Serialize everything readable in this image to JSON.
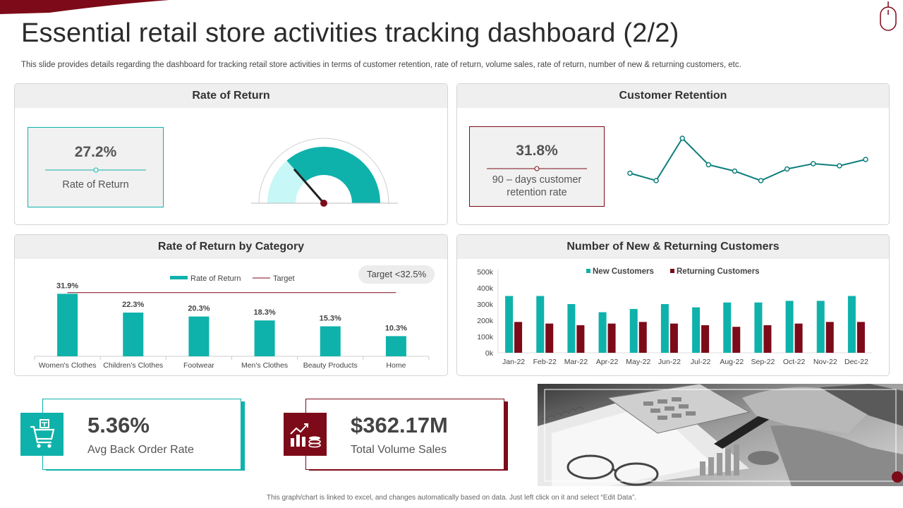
{
  "header": {
    "title": "Essential retail store activities tracking dashboard (2/2)",
    "subtitle": "This slide provides details regarding the dashboard for tracking retail store activities in terms of customer retention, rate of return, volume sales, rate of return, number of new & returning customers, etc."
  },
  "rate_of_return_panel": {
    "title": "Rate of Return",
    "value": "27.2%",
    "label": "Rate of Return",
    "gauge_fraction": 0.272
  },
  "customer_retention_panel": {
    "title": "Customer Retention",
    "value": "31.8%",
    "label_line1": "90 – days customer",
    "label_line2": "retention rate",
    "sparkline": [
      22,
      15,
      55,
      30,
      24,
      15,
      26,
      31,
      29,
      35
    ]
  },
  "category_panel": {
    "title": "Rate of Return by Category",
    "target_pill": "Target  <32.5%",
    "legend_series": "Rate of Return",
    "legend_target": "Target"
  },
  "customers_panel": {
    "title": "Number of New & Returning Customers"
  },
  "stats": {
    "back_order": {
      "value": "5.36%",
      "label": "Avg Back Order Rate"
    },
    "volume_sales": {
      "value": "$362.17M",
      "label": "Total Volume Sales"
    }
  },
  "footnote": "This graph/chart is linked to excel, and changes automatically based on data. Just left click on it and select “Edit Data”.",
  "colors": {
    "teal": "#0eb2ab",
    "maroon": "#7d0a18",
    "gauge_light": "#c8f7f7"
  },
  "icons": [
    "shopping-cart-icon",
    "sales-chart-coins-icon",
    "mouse-icon"
  ],
  "chart_data": [
    {
      "type": "bar",
      "title": "Rate of Return by Category",
      "categories": [
        "Women's Clothes",
        "Children's Clothes",
        "Footwear",
        "Men's Clothes",
        "Beauty Products",
        "Home"
      ],
      "series": [
        {
          "name": "Rate of Return",
          "values": [
            31.9,
            22.3,
            20.3,
            18.3,
            15.3,
            10.3
          ]
        }
      ],
      "data_labels": [
        "31.9%",
        "22.3%",
        "20.3%",
        "18.3%",
        "15.3%",
        "10.3%"
      ],
      "target": {
        "name": "Target",
        "value": 32.5
      },
      "ylim": [
        0,
        36
      ]
    },
    {
      "type": "bar",
      "title": "Number of New & Returning Customers",
      "categories": [
        "Jan-22",
        "Feb-22",
        "Mar-22",
        "Apr-22",
        "May-22",
        "Jun-22",
        "Jul-22",
        "Aug-22",
        "Sep-22",
        "Oct-22",
        "Nov-22",
        "Dec-22"
      ],
      "series": [
        {
          "name": "New Customers",
          "values": [
            350000,
            350000,
            300000,
            250000,
            270000,
            300000,
            280000,
            310000,
            310000,
            320000,
            320000,
            350000
          ]
        },
        {
          "name": "Returning Customers",
          "values": [
            190000,
            180000,
            170000,
            180000,
            190000,
            180000,
            170000,
            160000,
            170000,
            180000,
            190000,
            190000
          ]
        }
      ],
      "yticks": [
        "0k",
        "100k",
        "200k",
        "300k",
        "400k",
        "500k"
      ],
      "ylim": [
        0,
        500000
      ],
      "legend": "top"
    }
  ]
}
